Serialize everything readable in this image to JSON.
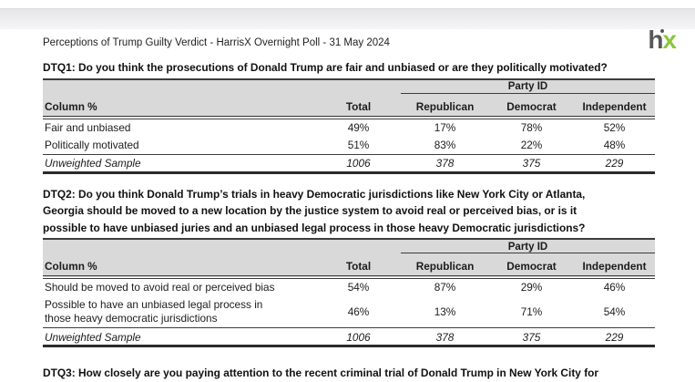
{
  "page": {
    "title": "Perceptions of Trump Guilty Verdict - HarrisX Overnight Poll - 31 May 2024",
    "logo": {
      "h": "h",
      "x": "x"
    }
  },
  "sections": [
    {
      "heading": "DTQ1: Do you think the prosecutions of Donald Trump are fair and unbiased or are they politically motivated?",
      "table": {
        "span_header": "Party ID",
        "columns": [
          "Column %",
          "Total",
          "Republican",
          "Democrat",
          "Independent"
        ],
        "rows": [
          {
            "label": "Fair and unbiased",
            "values": [
              "49%",
              "17%",
              "78%",
              "52%"
            ]
          },
          {
            "label": "Politically motivated",
            "values": [
              "51%",
              "83%",
              "22%",
              "48%"
            ]
          }
        ],
        "footer": {
          "label": "Unweighted Sample",
          "values": [
            "1006",
            "378",
            "375",
            "229"
          ]
        }
      }
    },
    {
      "heading": "DTQ2: Do you think Donald Trump’s trials in heavy Democratic jurisdictions like New York City or Atlanta,\nGeorgia should be moved to a new location by the justice system to avoid real or perceived bias, or is it\npossible to have unbiased juries and an unbiased legal process in those heavy Democratic jurisdictions?",
      "table": {
        "span_header": "Party ID",
        "columns": [
          "Column %",
          "Total",
          "Republican",
          "Democrat",
          "Independent"
        ],
        "rows": [
          {
            "label": "Should be moved to avoid real or perceived bias",
            "values": [
              "54%",
              "87%",
              "29%",
              "46%"
            ]
          },
          {
            "label": "Possible to have an unbiased legal process in\nthose heavy democratic jurisdictions",
            "values": [
              "46%",
              "13%",
              "71%",
              "54%"
            ]
          }
        ],
        "footer": {
          "label": "Unweighted Sample",
          "values": [
            "1006",
            "378",
            "375",
            "229"
          ]
        }
      }
    }
  ],
  "next_question": "DTQ3: How closely are you paying attention to the recent criminal trial of Donald Trump in New York City for"
}
